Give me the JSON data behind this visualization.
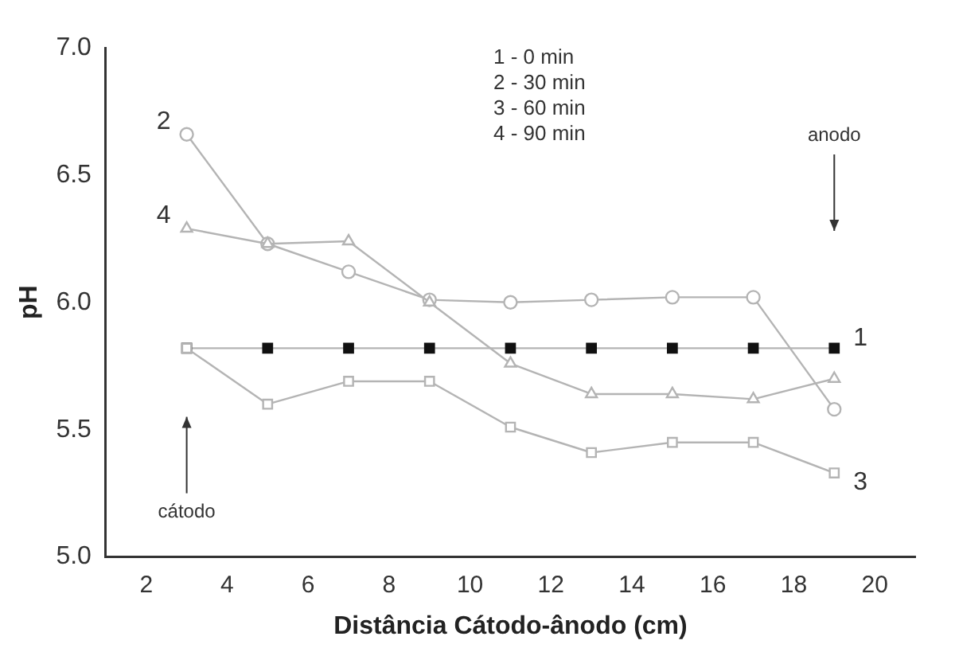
{
  "chart_data": {
    "type": "line",
    "xlabel": "Distância Cátodo-ânodo (cm)",
    "ylabel": "pH",
    "x": [
      3,
      5,
      7,
      9,
      11,
      13,
      15,
      17,
      19
    ],
    "xlim": [
      1,
      21
    ],
    "xticks": [
      2,
      4,
      6,
      8,
      10,
      12,
      14,
      16,
      18,
      20
    ],
    "ylim": [
      5,
      7
    ],
    "yticks": [
      {
        "value": 5,
        "label": "5.0"
      },
      {
        "value": 5.5,
        "label": "5.5"
      },
      {
        "value": 6,
        "label": "6.0"
      },
      {
        "value": 6.5,
        "label": "6.5"
      },
      {
        "value": 7,
        "label": "7.0"
      }
    ],
    "grid": false,
    "legend": false,
    "line_style": "solid",
    "series": [
      {
        "name": "1",
        "color": "#111111",
        "marker": "square",
        "values": [
          5.82,
          5.82,
          5.82,
          5.82,
          5.82,
          5.82,
          5.82,
          5.82,
          5.82
        ]
      },
      {
        "name": "2",
        "color": "#b4b4b4",
        "marker": "circle",
        "values": [
          6.66,
          6.23,
          6.12,
          6.01,
          6.0,
          6.01,
          6.02,
          6.02,
          5.58
        ]
      },
      {
        "name": "3",
        "color": "#b4b4b4",
        "marker": "square",
        "values": [
          5.82,
          5.6,
          5.69,
          5.69,
          5.51,
          5.41,
          5.45,
          5.45,
          5.33
        ]
      },
      {
        "name": "4",
        "color": "#b4b4b4",
        "marker": "triangle",
        "values": [
          6.29,
          6.23,
          6.24,
          6.0,
          5.76,
          5.64,
          5.64,
          5.62,
          5.7
        ]
      }
    ],
    "annotations": [
      "1 - 0 min",
      "2 - 30 min",
      "3 - 60 min",
      "4 - 90 min",
      "cátodo",
      "anodo"
    ]
  }
}
